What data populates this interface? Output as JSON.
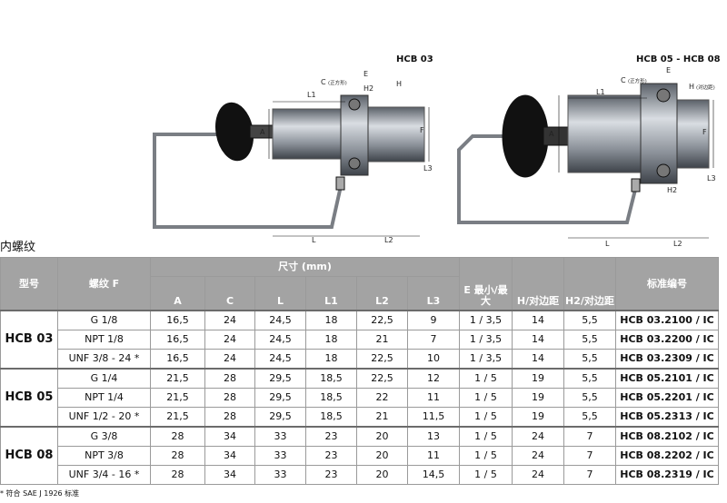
{
  "drawings": [
    {
      "title": "HCB 03",
      "labels": [
        "C",
        "(正方形)",
        "E",
        "H2",
        "H",
        "L1",
        "A",
        "F",
        "L3",
        "L",
        "L2"
      ]
    },
    {
      "title": "HCB 05 - HCB 08",
      "labels": [
        "C",
        "(正方形)",
        "E",
        "H",
        "(对边距)",
        "L1",
        "A",
        "F",
        "H2",
        "L3",
        "L",
        "L2"
      ]
    }
  ],
  "section_title": "内螺纹",
  "table": {
    "header": {
      "model": "型号",
      "thread": "螺纹 F",
      "dims": "尺寸 (mm)",
      "dim_cols": [
        "A",
        "C",
        "L",
        "L1",
        "L2",
        "L3"
      ],
      "extra_cols": [
        "E 最小/最大",
        "H/对边距",
        "H2/对边距"
      ],
      "standard": "标准编号"
    },
    "groups": [
      {
        "model": "HCB 03",
        "rows": [
          [
            "G 1/8",
            "16,5",
            "24",
            "24,5",
            "18",
            "22,5",
            "9",
            "1 / 3,5",
            "14",
            "5,5",
            "HCB 03.2100 / IC"
          ],
          [
            "NPT 1/8",
            "16,5",
            "24",
            "24,5",
            "18",
            "21",
            "7",
            "1 / 3,5",
            "14",
            "5,5",
            "HCB 03.2200 / IC"
          ],
          [
            "UNF 3/8 - 24 *",
            "16,5",
            "24",
            "24,5",
            "18",
            "22,5",
            "10",
            "1 / 3,5",
            "14",
            "5,5",
            "HCB 03.2309 / IC"
          ]
        ]
      },
      {
        "model": "HCB 05",
        "rows": [
          [
            "G 1/4",
            "21,5",
            "28",
            "29,5",
            "18,5",
            "22,5",
            "12",
            "1 / 5",
            "19",
            "5,5",
            "HCB 05.2101 / IC"
          ],
          [
            "NPT 1/4",
            "21,5",
            "28",
            "29,5",
            "18,5",
            "22",
            "11",
            "1 / 5",
            "19",
            "5,5",
            "HCB 05.2201 / IC"
          ],
          [
            "UNF 1/2 - 20 *",
            "21,5",
            "28",
            "29,5",
            "18,5",
            "21",
            "11,5",
            "1 / 5",
            "19",
            "5,5",
            "HCB 05.2313 / IC"
          ]
        ]
      },
      {
        "model": "HCB 08",
        "rows": [
          [
            "G 3/8",
            "28",
            "34",
            "33",
            "23",
            "20",
            "13",
            "1 / 5",
            "24",
            "7",
            "HCB 08.2102 / IC"
          ],
          [
            "NPT 3/8",
            "28",
            "34",
            "33",
            "23",
            "20",
            "11",
            "1 / 5",
            "24",
            "7",
            "HCB 08.2202 / IC"
          ],
          [
            "UNF 3/4 - 16 *",
            "28",
            "34",
            "33",
            "23",
            "20",
            "14,5",
            "1 / 5",
            "24",
            "7",
            "HCB 08.2319 / IC"
          ]
        ]
      }
    ]
  },
  "footnote": "* 符合 SAE J 1926 标准"
}
